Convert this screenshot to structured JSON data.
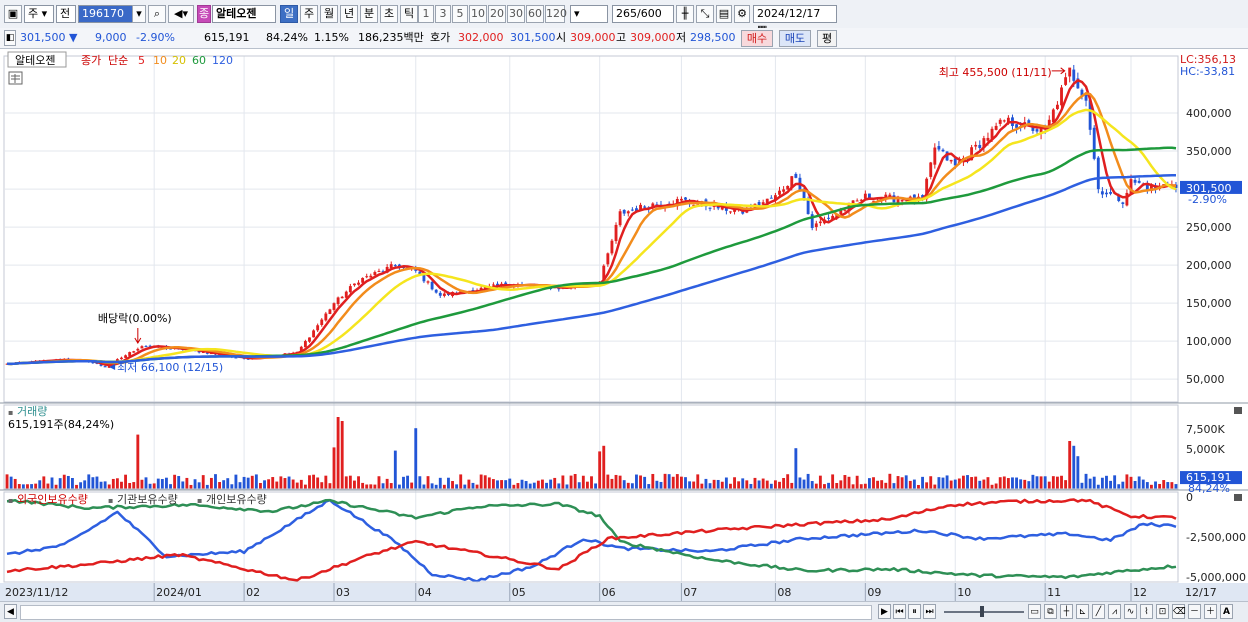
{
  "toolbar": {
    "market": "주",
    "scope": "전",
    "code": "196170",
    "stock_badge": "종",
    "stock_name": "알테오젠",
    "periods": [
      "일",
      "주",
      "월",
      "년",
      "분",
      "초",
      "틱"
    ],
    "active_period": "일",
    "intervals": [
      "1",
      "3",
      "5",
      "10",
      "20",
      "30",
      "60",
      "120"
    ],
    "count": "265",
    "count_max": "/600",
    "date": "2024/12/17"
  },
  "quote": {
    "price": "301,500",
    "change": "9,000",
    "change_pct": "-2.90%",
    "volume": "615,191",
    "vol_ratio": "84.24%",
    "turnover_pct": "1.15%",
    "amount": "186,235백만",
    "bid_label": "호가",
    "ask": "302,000",
    "bid": "301,500",
    "open_label": "시",
    "open": "309,000",
    "high_label": "고",
    "high": "309,000",
    "low_label": "저",
    "low": "298,500",
    "buy_label": "매수",
    "sell_label": "매도",
    "eval_label": "평"
  },
  "colors": {
    "up": "#e01f1f",
    "down": "#2255d6",
    "ma5": "#e01f1f",
    "ma10": "#f28c1c",
    "ma20": "#f5e51e",
    "ma60": "#1e9a3c",
    "ma120": "#2e5fe0",
    "foreign": "#2e5fe0",
    "inst": "#2e8f55",
    "individual": "#e01f1f"
  },
  "chart_data": [
    {
      "type": "candlestick",
      "legend": [
        "알테오젠",
        "종가",
        "단순",
        "5",
        "10",
        "20",
        "60",
        "120"
      ],
      "y_ticks": [
        50000,
        100000,
        150000,
        200000,
        250000,
        300000,
        350000,
        400000
      ],
      "y_tick_labels": [
        "50,000",
        "100,000",
        "150,000",
        "200,000",
        "250,000",
        "300,000",
        "350,000",
        "400,000"
      ],
      "ylim": [
        20000,
        475000
      ],
      "x_month_labels": [
        "2023/11/12",
        "2024/01",
        "02",
        "03",
        "04",
        "05",
        "06",
        "07",
        "08",
        "09",
        "10",
        "11",
        "12",
        "12/17"
      ],
      "x_month_dates": [
        "2023-11-13",
        "2024-01-02",
        "2024-02-01",
        "2024-03-04",
        "2024-04-01",
        "2024-05-02",
        "2024-06-03",
        "2024-07-01",
        "2024-08-01",
        "2024-09-02",
        "2024-10-02",
        "2024-11-01",
        "2024-12-02",
        "2024-12-17"
      ],
      "close_anchors": [
        [
          "2023-11-13",
          70000
        ],
        [
          "2023-12-01",
          76000
        ],
        [
          "2023-12-11",
          73000
        ],
        [
          "2023-12-15",
          66100
        ],
        [
          "2023-12-28",
          94000
        ],
        [
          "2024-01-15",
          88000
        ],
        [
          "2024-02-01",
          77000
        ],
        [
          "2024-02-20",
          85000
        ],
        [
          "2024-03-04",
          150000
        ],
        [
          "2024-03-12",
          180000
        ],
        [
          "2024-03-25",
          200000
        ],
        [
          "2024-04-01",
          192000
        ],
        [
          "2024-04-09",
          160000
        ],
        [
          "2024-04-22",
          168000
        ],
        [
          "2024-05-02",
          175000
        ],
        [
          "2024-05-20",
          170000
        ],
        [
          "2024-06-03",
          178000
        ],
        [
          "2024-06-10",
          268000
        ],
        [
          "2024-06-20",
          280000
        ],
        [
          "2024-07-01",
          285000
        ],
        [
          "2024-07-20",
          270000
        ],
        [
          "2024-08-01",
          290000
        ],
        [
          "2024-08-08",
          320000
        ],
        [
          "2024-08-14",
          250000
        ],
        [
          "2024-09-02",
          290000
        ],
        [
          "2024-09-20",
          285000
        ],
        [
          "2024-09-25",
          355000
        ],
        [
          "2024-10-02",
          330000
        ],
        [
          "2024-10-18",
          390000
        ],
        [
          "2024-11-01",
          375000
        ],
        [
          "2024-11-11",
          455500
        ],
        [
          "2024-11-15",
          420000
        ],
        [
          "2024-11-20",
          300000
        ],
        [
          "2024-11-28",
          285000
        ],
        [
          "2024-12-02",
          310000
        ],
        [
          "2024-12-10",
          300000
        ],
        [
          "2024-12-16",
          310500
        ],
        [
          "2024-12-17",
          301500
        ]
      ],
      "ma_last": {
        "ma5": 312000,
        "ma10": 318000,
        "ma20": 326000,
        "ma60": 356000,
        "ma120": 322000
      },
      "annotations": {
        "high": {
          "text": "최고 455,500 (11/11)",
          "date": "2024-11-11",
          "value": 455500
        },
        "low": {
          "text": "최저 66,100 (12/15)",
          "date": "2023-12-15",
          "value": 66100
        },
        "dividend": {
          "text": "배당락(0.00%)",
          "date": "2023-12-27"
        }
      },
      "right_labels": {
        "lc": "LC:356,13",
        "hc": "HC:-33,81",
        "last_price": "301,500",
        "last_pct": "-2.90%"
      }
    },
    {
      "type": "bar",
      "title": "거래량",
      "subtitle": "615,191주(84,24%)",
      "y_ticks": [
        5000,
        7500
      ],
      "y_tick_labels": [
        "5,000K",
        "7,500K"
      ],
      "ylim": [
        0,
        10500
      ],
      "spike_dates": [
        "2023-12-27",
        "2024-03-04",
        "2024-03-05",
        "2024-03-06",
        "2024-03-25",
        "2024-04-01",
        "2024-06-03",
        "2024-06-04",
        "2024-08-08",
        "2024-11-11",
        "2024-11-12",
        "2024-11-13"
      ],
      "spike_values": [
        6800,
        5200,
        9000,
        8500,
        4800,
        7600,
        4700,
        5400,
        5100,
        6000,
        5400,
        4100
      ],
      "right_labels": {
        "last_value": "615,191",
        "last_pct": "84,24%"
      }
    },
    {
      "type": "line",
      "legend": [
        "외국인보유수량",
        "기관보유수량",
        "개인보유수량"
      ],
      "y_ticks": [
        0,
        -2500000,
        -5000000
      ],
      "y_tick_labels": [
        "0",
        "-2,500,000",
        "-5,000,000"
      ],
      "ylim": [
        -5300000,
        300000
      ],
      "series": [
        {
          "name": "외국인보유수량",
          "anchors": [
            [
              "2023-11-13",
              -3600000
            ],
            [
              "2023-12-01",
              -3000000
            ],
            [
              "2023-12-20",
              -950000
            ],
            [
              "2024-01-05",
              -3700000
            ],
            [
              "2024-02-01",
              -3400000
            ],
            [
              "2024-03-01",
              -200000
            ],
            [
              "2024-03-25",
              -2800000
            ],
            [
              "2024-04-05",
              -4800000
            ],
            [
              "2024-04-20",
              -5200000
            ],
            [
              "2024-05-10",
              -4300000
            ],
            [
              "2024-05-28",
              -2600000
            ],
            [
              "2024-06-10",
              -3200000
            ],
            [
              "2024-07-10",
              -3400000
            ],
            [
              "2024-08-10",
              -2600000
            ],
            [
              "2024-09-20",
              -2100000
            ],
            [
              "2024-10-10",
              -2600000
            ],
            [
              "2024-11-10",
              -2300000
            ],
            [
              "2024-11-25",
              -2700000
            ],
            [
              "2024-12-05",
              -1700000
            ],
            [
              "2024-12-17",
              -1800000
            ]
          ]
        },
        {
          "name": "기관보유수량",
          "anchors": [
            [
              "2023-11-13",
              -200000
            ],
            [
              "2023-12-10",
              -700000
            ],
            [
              "2024-01-15",
              -500000
            ],
            [
              "2024-02-10",
              -900000
            ],
            [
              "2024-03-01",
              -250000
            ],
            [
              "2024-04-01",
              -1300000
            ],
            [
              "2024-04-20",
              -600000
            ],
            [
              "2024-05-20",
              -450000
            ],
            [
              "2024-06-01",
              -1200000
            ],
            [
              "2024-06-10",
              -2800000
            ],
            [
              "2024-07-10",
              -3900000
            ],
            [
              "2024-08-10",
              -4600000
            ],
            [
              "2024-09-10",
              -4500000
            ],
            [
              "2024-10-10",
              -4900000
            ],
            [
              "2024-11-10",
              -5000000
            ],
            [
              "2024-11-25",
              -4700000
            ],
            [
              "2024-12-17",
              -4300000
            ]
          ]
        },
        {
          "name": "개인보유수량",
          "anchors": [
            [
              "2023-11-13",
              -4600000
            ],
            [
              "2023-12-10",
              -4200000
            ],
            [
              "2024-01-10",
              -3600000
            ],
            [
              "2024-02-20",
              -5200000
            ],
            [
              "2024-03-15",
              -3600000
            ],
            [
              "2024-04-01",
              -2800000
            ],
            [
              "2024-04-20",
              -3500000
            ],
            [
              "2024-05-20",
              -4500000
            ],
            [
              "2024-06-05",
              -2600000
            ],
            [
              "2024-07-10",
              -2100000
            ],
            [
              "2024-08-10",
              -1700000
            ],
            [
              "2024-09-10",
              -1400000
            ],
            [
              "2024-10-01",
              -500000
            ],
            [
              "2024-10-20",
              -300000
            ],
            [
              "2024-11-15",
              -200000
            ],
            [
              "2024-12-01",
              -1200000
            ],
            [
              "2024-12-17",
              -1300000
            ]
          ]
        }
      ]
    }
  ],
  "bottom_toolbar": {
    "zoom_out": "－",
    "zoom_in": "＋",
    "text_tool": "A"
  }
}
